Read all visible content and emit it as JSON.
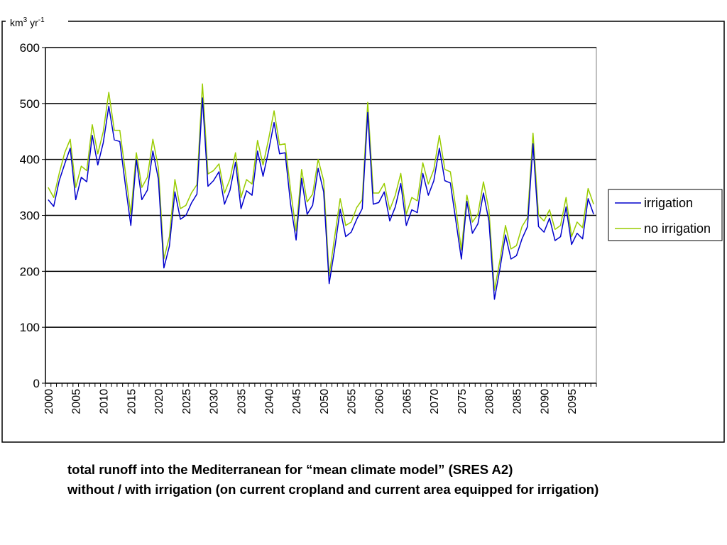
{
  "caption": {
    "line1": "total runoff into the Mediterranean for “mean climate model” (SRES A2)",
    "line2": "without / with irrigation (on current cropland and current area equipped for irrigation)"
  },
  "chart_data": {
    "type": "line",
    "unit_label": {
      "base": "km",
      "sup1": "3",
      "mid": " yr",
      "sup2": "-1"
    },
    "ylim": [
      0,
      600
    ],
    "yticks": [
      0,
      100,
      200,
      300,
      400,
      500,
      600
    ],
    "grid": true,
    "legend": "right",
    "xlim": [
      2000,
      2099
    ],
    "xtick_labels": [
      "2000",
      "2005",
      "2010",
      "2015",
      "2020",
      "2025",
      "2030",
      "2035",
      "2040",
      "2045",
      "2050",
      "2055",
      "2060",
      "2065",
      "2070",
      "2075",
      "2080",
      "2085",
      "2090",
      "2095"
    ],
    "x": [
      2000,
      2001,
      2002,
      2003,
      2004,
      2005,
      2006,
      2007,
      2008,
      2009,
      2010,
      2011,
      2012,
      2013,
      2014,
      2015,
      2016,
      2017,
      2018,
      2019,
      2020,
      2021,
      2022,
      2023,
      2024,
      2025,
      2026,
      2027,
      2028,
      2029,
      2030,
      2031,
      2032,
      2033,
      2034,
      2035,
      2036,
      2037,
      2038,
      2039,
      2040,
      2041,
      2042,
      2043,
      2044,
      2045,
      2046,
      2047,
      2048,
      2049,
      2050,
      2051,
      2052,
      2053,
      2054,
      2055,
      2056,
      2057,
      2058,
      2059,
      2060,
      2061,
      2062,
      2063,
      2064,
      2065,
      2066,
      2067,
      2068,
      2069,
      2070,
      2071,
      2072,
      2073,
      2074,
      2075,
      2076,
      2077,
      2078,
      2079,
      2080,
      2081,
      2082,
      2083,
      2084,
      2085,
      2086,
      2087,
      2088,
      2089,
      2090,
      2091,
      2092,
      2093,
      2094,
      2095,
      2096,
      2097,
      2098,
      2099
    ],
    "series": [
      {
        "name": "irrigation",
        "color": "#0000cc",
        "values": [
          328,
          316,
          362,
          392,
          420,
          328,
          368,
          360,
          443,
          390,
          430,
          495,
          435,
          432,
          355,
          282,
          400,
          328,
          345,
          415,
          365,
          206,
          245,
          342,
          293,
          300,
          322,
          338,
          510,
          352,
          362,
          378,
          320,
          345,
          395,
          312,
          344,
          336,
          415,
          370,
          415,
          466,
          410,
          412,
          320,
          256,
          366,
          302,
          318,
          384,
          342,
          178,
          240,
          311,
          262,
          270,
          293,
          312,
          484,
          320,
          323,
          342,
          290,
          315,
          357,
          282,
          310,
          305,
          375,
          336,
          362,
          420,
          362,
          358,
          290,
          222,
          325,
          268,
          285,
          340,
          290,
          150,
          205,
          265,
          222,
          228,
          258,
          280,
          428,
          280,
          270,
          295,
          255,
          262,
          315,
          248,
          268,
          258,
          330,
          302
        ]
      },
      {
        "name": "no irrigation",
        "color": "#99cc00",
        "values": [
          350,
          332,
          375,
          412,
          436,
          350,
          388,
          380,
          462,
          410,
          450,
          520,
          452,
          452,
          378,
          302,
          412,
          350,
          368,
          436,
          385,
          222,
          262,
          364,
          312,
          318,
          340,
          355,
          535,
          374,
          380,
          392,
          340,
          365,
          412,
          332,
          364,
          356,
          434,
          390,
          436,
          487,
          426,
          428,
          345,
          272,
          382,
          324,
          338,
          400,
          362,
          192,
          262,
          330,
          282,
          288,
          314,
          328,
          502,
          340,
          340,
          357,
          310,
          336,
          375,
          302,
          332,
          326,
          394,
          356,
          382,
          443,
          382,
          378,
          312,
          238,
          336,
          288,
          302,
          360,
          310,
          166,
          220,
          282,
          240,
          246,
          280,
          296,
          447,
          300,
          290,
          310,
          275,
          282,
          332,
          262,
          288,
          278,
          348,
          320
        ]
      }
    ]
  }
}
